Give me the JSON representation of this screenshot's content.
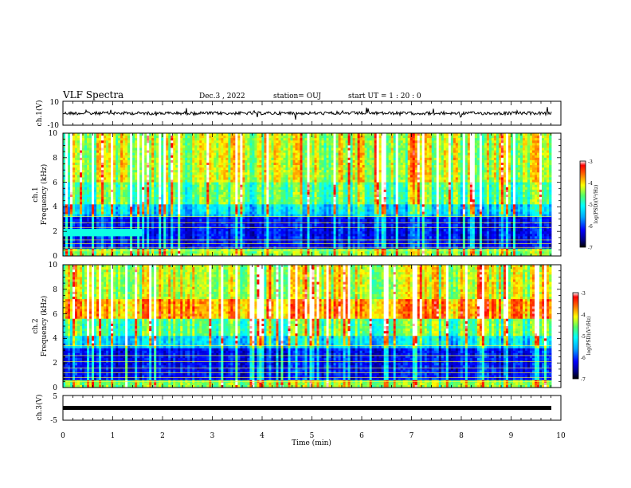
{
  "header": {
    "title": "VLF Spectra",
    "date": "Dec.3  , 2022",
    "station": "station= OUJ",
    "start_ut": "start  UT =   1 : 20 : 0"
  },
  "colorbar_scale": [
    "#000000",
    "#00007f",
    "#0000ff",
    "#0055ff",
    "#00aaff",
    "#00ffff",
    "#55ff88",
    "#99ff33",
    "#ffff00",
    "#ffaa00",
    "#ff3300",
    "#ff0000",
    "#ffffff"
  ],
  "chart_data": [
    {
      "type": "line",
      "ylabel": "ch.1(V)",
      "ylim": [
        -10,
        10
      ],
      "yticks": [
        "10",
        "-10"
      ],
      "xlim": [
        0,
        10
      ]
    },
    {
      "type": "heatmap",
      "ylabel": "ch.1\nFrequency (kHz)",
      "ylabel_lines": [
        "ch.1",
        "Frequency  (kHz)"
      ],
      "ylim": [
        0,
        10
      ],
      "yticks": [
        "0",
        "2",
        "4",
        "6",
        "8",
        "10"
      ],
      "xlim": [
        0,
        10
      ],
      "colorbar": {
        "label": "log(PSD)(V²/Hz)",
        "range": [
          -7,
          -3
        ],
        "ticks": [
          "-3",
          "-4",
          "-5",
          "-6",
          "-7"
        ]
      }
    },
    {
      "type": "heatmap",
      "ylabel_lines": [
        "ch.2",
        "Frequency  (kHz)"
      ],
      "ylim": [
        0,
        10
      ],
      "yticks": [
        "0",
        "2",
        "4",
        "6",
        "8",
        "10"
      ],
      "xlim": [
        0,
        10
      ],
      "colorbar": {
        "label": "log(PSD)(V²/Hz)",
        "range": [
          -7,
          -3
        ],
        "ticks": [
          "-3",
          "-4",
          "-5",
          "-6",
          "-7"
        ]
      }
    },
    {
      "type": "line",
      "ylabel": "ch.3(V)",
      "ylim": [
        -5,
        5
      ],
      "yticks": [
        "5",
        "-5"
      ],
      "xlim": [
        0,
        10
      ],
      "xlabel": "Time  (min)",
      "xticks": [
        "0",
        "1",
        "2",
        "3",
        "4",
        "5",
        "6",
        "7",
        "8",
        "9",
        "10"
      ]
    }
  ]
}
